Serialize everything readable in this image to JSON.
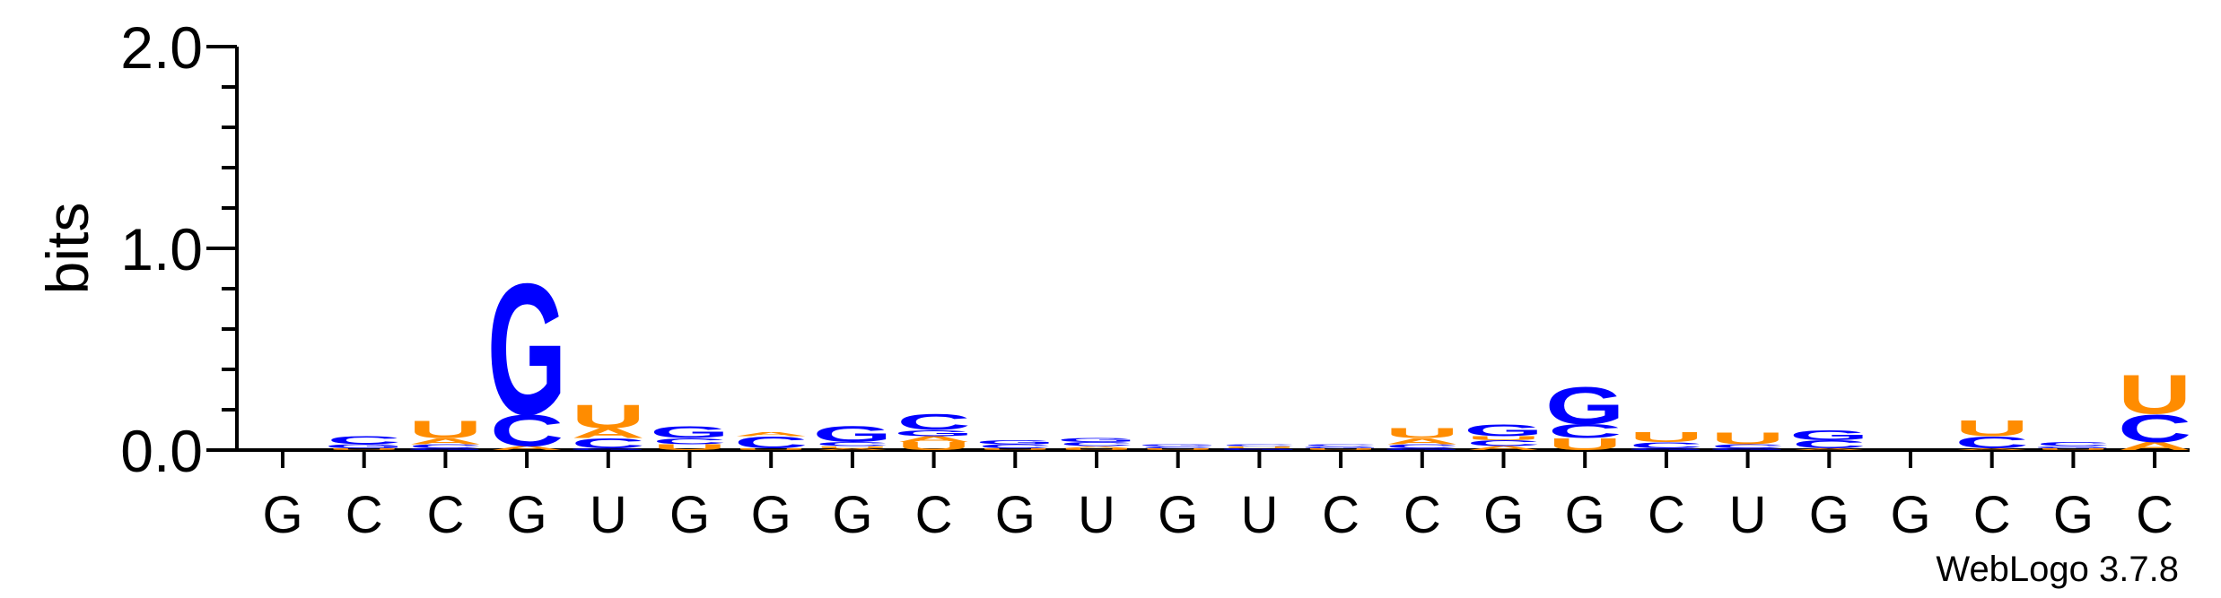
{
  "chart_data": {
    "type": "sequence-logo",
    "ylabel": "bits",
    "ylim": [
      0,
      2.0
    ],
    "y_ticks": [
      "0.0",
      "1.0",
      "2.0"
    ],
    "y_tick_values": [
      0,
      1,
      2
    ],
    "colors": {
      "A": "#ff8c00",
      "U": "#ff8c00",
      "G": "#0000ff",
      "C": "#0000ff"
    },
    "credit": "WebLogo 3.7.8",
    "positions": [
      {
        "label": "G",
        "stack": []
      },
      {
        "label": "C",
        "stack": [
          {
            "letter": "U",
            "bits": 0.01
          },
          {
            "letter": "G",
            "bits": 0.02
          },
          {
            "letter": "C",
            "bits": 0.04
          }
        ]
      },
      {
        "label": "C",
        "stack": [
          {
            "letter": "G",
            "bits": 0.01
          },
          {
            "letter": "C",
            "bits": 0.02
          },
          {
            "letter": "A",
            "bits": 0.03
          },
          {
            "letter": "U",
            "bits": 0.09
          }
        ]
      },
      {
        "label": "G",
        "stack": [
          {
            "letter": "A",
            "bits": 0.02
          },
          {
            "letter": "C",
            "bits": 0.16
          },
          {
            "letter": "G",
            "bits": 0.67
          }
        ]
      },
      {
        "label": "U",
        "stack": [
          {
            "letter": "G",
            "bits": 0.01
          },
          {
            "letter": "C",
            "bits": 0.05
          },
          {
            "letter": "A",
            "bits": 0.05
          },
          {
            "letter": "U",
            "bits": 0.12
          }
        ]
      },
      {
        "label": "G",
        "stack": [
          {
            "letter": "U",
            "bits": 0.03
          },
          {
            "letter": "C",
            "bits": 0.03
          },
          {
            "letter": "G",
            "bits": 0.06
          }
        ]
      },
      {
        "label": "G",
        "stack": [
          {
            "letter": "U",
            "bits": 0.01
          },
          {
            "letter": "C",
            "bits": 0.06
          },
          {
            "letter": "A",
            "bits": 0.02
          }
        ]
      },
      {
        "label": "G",
        "stack": [
          {
            "letter": "A",
            "bits": 0.01
          },
          {
            "letter": "U",
            "bits": 0.01
          },
          {
            "letter": "C",
            "bits": 0.02
          },
          {
            "letter": "G",
            "bits": 0.08
          }
        ]
      },
      {
        "label": "C",
        "stack": [
          {
            "letter": "U",
            "bits": 0.04
          },
          {
            "letter": "A",
            "bits": 0.03
          },
          {
            "letter": "G",
            "bits": 0.03
          },
          {
            "letter": "C",
            "bits": 0.08
          }
        ]
      },
      {
        "label": "G",
        "stack": [
          {
            "letter": "U",
            "bits": 0.01
          },
          {
            "letter": "C",
            "bits": 0.02
          },
          {
            "letter": "G",
            "bits": 0.02
          }
        ]
      },
      {
        "label": "U",
        "stack": [
          {
            "letter": "U",
            "bits": 0.01
          },
          {
            "letter": "A",
            "bits": 0.01
          },
          {
            "letter": "C",
            "bits": 0.02
          },
          {
            "letter": "G",
            "bits": 0.02
          }
        ]
      },
      {
        "label": "G",
        "stack": [
          {
            "letter": "U",
            "bits": 0.01
          },
          {
            "letter": "C",
            "bits": 0.01
          },
          {
            "letter": "G",
            "bits": 0.01
          }
        ]
      },
      {
        "label": "U",
        "stack": [
          {
            "letter": "G",
            "bits": 0.01
          },
          {
            "letter": "U",
            "bits": 0.01
          },
          {
            "letter": "C",
            "bits": 0.01
          }
        ]
      },
      {
        "label": "C",
        "stack": [
          {
            "letter": "U",
            "bits": 0.01
          },
          {
            "letter": "G",
            "bits": 0.01
          },
          {
            "letter": "C",
            "bits": 0.01
          }
        ]
      },
      {
        "label": "C",
        "stack": [
          {
            "letter": "G",
            "bits": 0.01
          },
          {
            "letter": "C",
            "bits": 0.02
          },
          {
            "letter": "A",
            "bits": 0.03
          },
          {
            "letter": "U",
            "bits": 0.05
          }
        ]
      },
      {
        "label": "G",
        "stack": [
          {
            "letter": "A",
            "bits": 0.02
          },
          {
            "letter": "C",
            "bits": 0.03
          },
          {
            "letter": "U",
            "bits": 0.02
          },
          {
            "letter": "G",
            "bits": 0.06
          }
        ]
      },
      {
        "label": "G",
        "stack": [
          {
            "letter": "U",
            "bits": 0.06
          },
          {
            "letter": "C",
            "bits": 0.07
          },
          {
            "letter": "G",
            "bits": 0.19
          }
        ]
      },
      {
        "label": "C",
        "stack": [
          {
            "letter": "G",
            "bits": 0.01
          },
          {
            "letter": "C",
            "bits": 0.03
          },
          {
            "letter": "U",
            "bits": 0.05
          }
        ]
      },
      {
        "label": "U",
        "stack": [
          {
            "letter": "G",
            "bits": 0.01
          },
          {
            "letter": "C",
            "bits": 0.02
          },
          {
            "letter": "U",
            "bits": 0.06
          }
        ]
      },
      {
        "label": "G",
        "stack": [
          {
            "letter": "A",
            "bits": 0.01
          },
          {
            "letter": "C",
            "bits": 0.04
          },
          {
            "letter": "G",
            "bits": 0.05
          }
        ]
      },
      {
        "label": "G",
        "stack": []
      },
      {
        "label": "C",
        "stack": [
          {
            "letter": "A",
            "bits": 0.01
          },
          {
            "letter": "C",
            "bits": 0.06
          },
          {
            "letter": "U",
            "bits": 0.08
          }
        ]
      },
      {
        "label": "G",
        "stack": [
          {
            "letter": "U",
            "bits": 0.01
          },
          {
            "letter": "G",
            "bits": 0.01
          },
          {
            "letter": "C",
            "bits": 0.02
          }
        ]
      },
      {
        "label": "C",
        "stack": [
          {
            "letter": "A",
            "bits": 0.04
          },
          {
            "letter": "C",
            "bits": 0.14
          },
          {
            "letter": "U",
            "bits": 0.2
          }
        ]
      }
    ]
  }
}
